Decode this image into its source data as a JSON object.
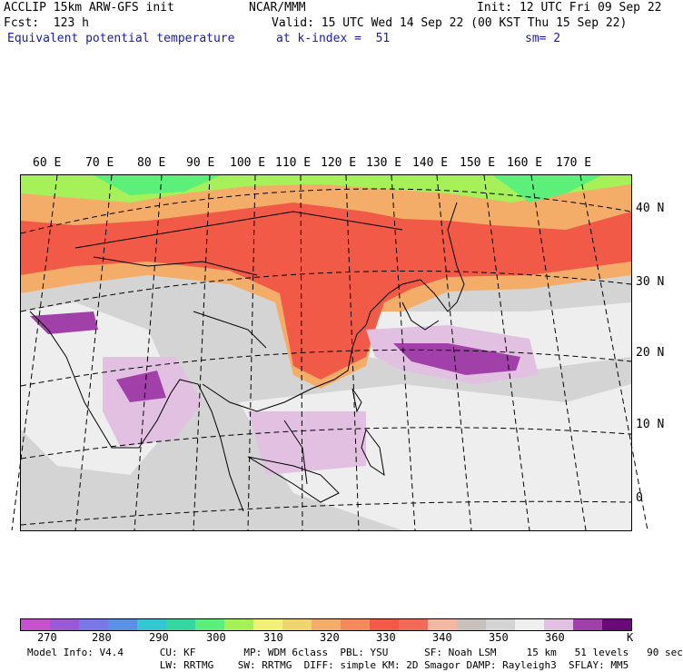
{
  "header": {
    "model": "ACCLIP 15km ARW-GFS init",
    "forecast": "Fcst:  123 h",
    "field": "Equivalent potential temperature",
    "center": "NCAR/MMM",
    "valid": "Valid: 15 UTC Wed 14 Sep 22 (00 KST Thu 15 Sep 22)",
    "level": "at k-index =  51",
    "init": "Init: 12 UTC Fri 09 Sep 22",
    "smoothing": "sm= 2"
  },
  "map": {
    "lon_labels": [
      "60 E",
      "70 E",
      "80 E",
      "90 E",
      "100 E",
      "110 E",
      "120 E",
      "130 E",
      "140 E",
      "150 E",
      "160 E",
      "170 E"
    ],
    "lat_labels": [
      "40 N",
      "30 N",
      "20 N",
      "10 N",
      "0"
    ]
  },
  "colorbar": {
    "colors": [
      "#c64fcc",
      "#9a5ad8",
      "#7a78e6",
      "#5a90e6",
      "#35c6d2",
      "#35d6a0",
      "#5cf07a",
      "#a6f05a",
      "#f0f07a",
      "#f0d470",
      "#f4ad68",
      "#f48a5a",
      "#f25a48",
      "#f26a5a",
      "#f2b8a4",
      "#c8c0ba",
      "#d4d4d4",
      "#eeeeee",
      "#e2c0e2",
      "#a040a8",
      "#6a0a78"
    ],
    "labels": [
      "270",
      "280",
      "290",
      "300",
      "310",
      "320",
      "330",
      "340",
      "350",
      "360",
      "K"
    ]
  },
  "footer": {
    "line1": "Model Info: V4.4      CU: KF        MP: WDM 6class  PBL: YSU      SF: Noah LSM     15 km   51 levels   90 sec",
    "line2": "                      LW: RRTMG    SW: RRTMG  DIFF: simple KM: 2D Smagor DAMP: Rayleigh3  SFLAY: MM5"
  }
}
